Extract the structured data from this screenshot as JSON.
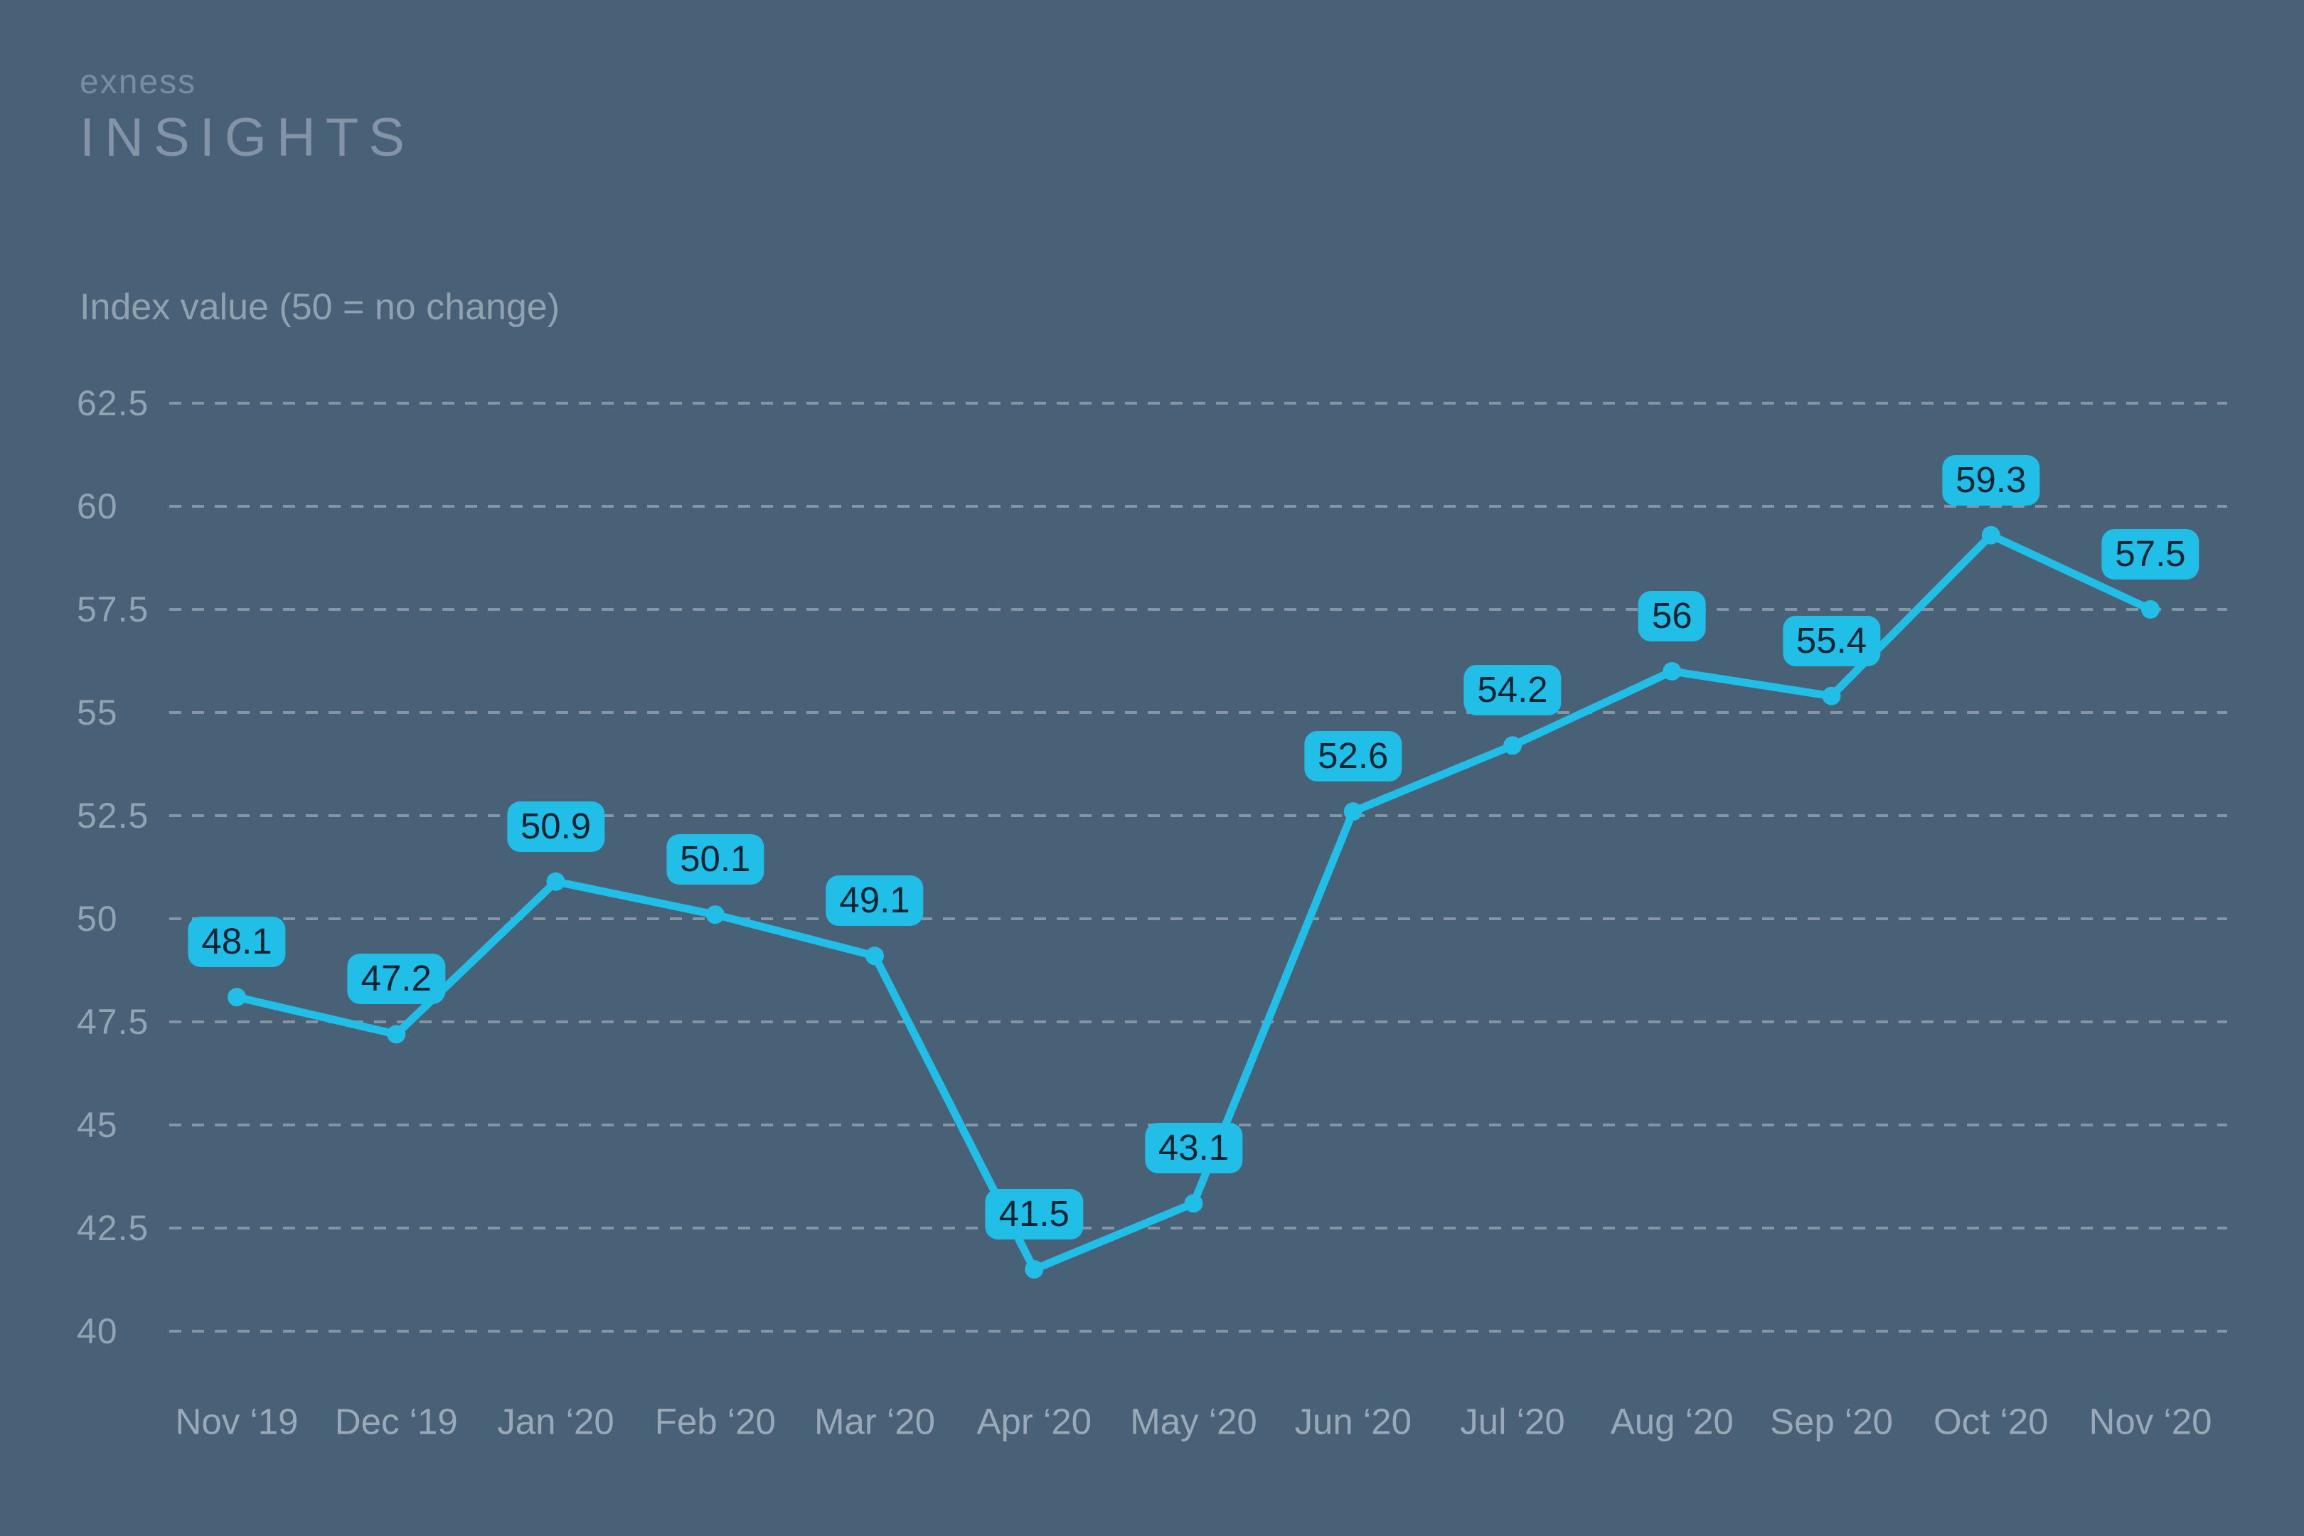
{
  "brand": {
    "logo_top": "exness",
    "logo_bottom": "INSIGHTS"
  },
  "chart_data": {
    "type": "line",
    "title": "Index value (50 = no change)",
    "categories": [
      "Nov ‘19",
      "Dec ‘19",
      "Jan ‘20",
      "Feb ‘20",
      "Mar ‘20",
      "Apr ‘20",
      "May ‘20",
      "Jun ‘20",
      "Jul ‘20",
      "Aug ‘20",
      "Sep ‘20",
      "Oct ‘20",
      "Nov ‘20"
    ],
    "values": [
      48.1,
      47.2,
      50.9,
      50.1,
      49.1,
      41.5,
      43.1,
      52.6,
      54.2,
      56,
      55.4,
      59.3,
      57.5
    ],
    "point_labels": [
      "48.1",
      "47.2",
      "50.9",
      "50.1",
      "49.1",
      "41.5",
      "43.1",
      "52.6",
      "54.2",
      "56",
      "55.4",
      "59.3",
      "57.5"
    ],
    "y_ticks": [
      "62.5",
      "60",
      "57.5",
      "55",
      "52.5",
      "50",
      "47.5",
      "45",
      "42.5",
      "40"
    ],
    "ylim": [
      40,
      62.5
    ],
    "xlabel": "",
    "ylabel": "Index value (50 = no change)",
    "grid": "horizontal-dashed",
    "legend": "none",
    "series_name": "Index value",
    "colors": {
      "background": "#496177",
      "line": "#21BEE7",
      "marker": "#21BEE7",
      "label_bg": "#21BEE7",
      "label_text": "#0D2332",
      "y_axis_text": "#91A4B1",
      "x_axis_text": "#98AAB7",
      "grid_line": "#93A3B0",
      "axis_title_text": "#8FA2B0",
      "logo_top_text": "#788DA0",
      "logo_bottom_text": "#8294A6"
    }
  }
}
